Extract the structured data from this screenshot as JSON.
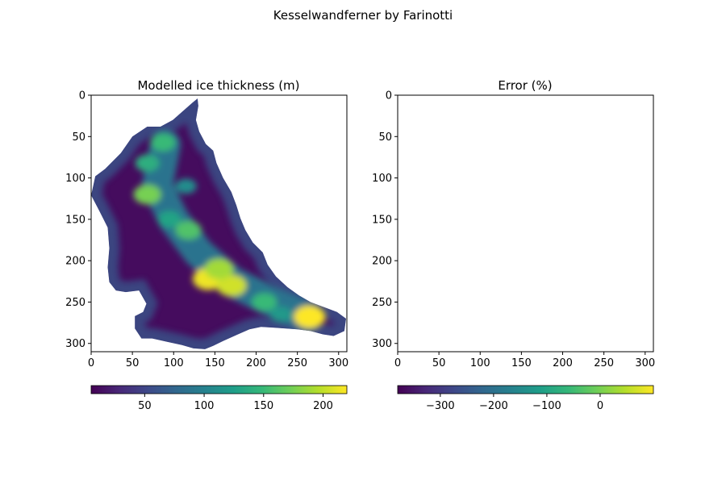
{
  "figure": {
    "suptitle": "Kesselwandferner by Farinotti"
  },
  "colormap": {
    "name": "viridis",
    "stops": [
      "#440154",
      "#482878",
      "#3e4989",
      "#31688e",
      "#26828e",
      "#1f9e89",
      "#35b779",
      "#6ece58",
      "#b5de2b",
      "#fde725"
    ]
  },
  "chart_data": [
    {
      "type": "heatmap",
      "title": "Modelled ice thickness (m)",
      "xlim": [
        0,
        310
      ],
      "ylim": [
        310,
        0
      ],
      "y_inverted": true,
      "x_ticks": [
        0,
        50,
        100,
        150,
        200,
        250,
        300
      ],
      "y_ticks": [
        0,
        50,
        100,
        150,
        200,
        250,
        300
      ],
      "colorbar": {
        "orientation": "horizontal",
        "range": [
          5,
          220
        ],
        "ticks": [
          50,
          100,
          150,
          200
        ]
      },
      "mask_outline": [
        [
          124,
          8
        ],
        [
          129,
          4
        ],
        [
          130,
          13
        ],
        [
          127,
          30
        ],
        [
          131,
          44
        ],
        [
          139,
          59
        ],
        [
          148,
          67
        ],
        [
          152,
          82
        ],
        [
          160,
          100
        ],
        [
          170,
          117
        ],
        [
          176,
          133
        ],
        [
          181,
          149
        ],
        [
          187,
          163
        ],
        [
          196,
          178
        ],
        [
          208,
          190
        ],
        [
          214,
          205
        ],
        [
          224,
          219
        ],
        [
          238,
          232
        ],
        [
          252,
          242
        ],
        [
          266,
          250
        ],
        [
          282,
          256
        ],
        [
          298,
          262
        ],
        [
          309,
          270
        ],
        [
          307,
          285
        ],
        [
          294,
          291
        ],
        [
          281,
          289
        ],
        [
          266,
          285
        ],
        [
          250,
          283
        ],
        [
          236,
          282
        ],
        [
          222,
          281
        ],
        [
          206,
          280
        ],
        [
          192,
          283
        ],
        [
          178,
          289
        ],
        [
          160,
          297
        ],
        [
          148,
          303
        ],
        [
          138,
          307
        ],
        [
          124,
          306
        ],
        [
          110,
          302
        ],
        [
          92,
          298
        ],
        [
          74,
          294
        ],
        [
          61,
          294
        ],
        [
          53,
          282
        ],
        [
          53,
          267
        ],
        [
          63,
          262
        ],
        [
          67,
          252
        ],
        [
          58,
          236
        ],
        [
          42,
          238
        ],
        [
          30,
          236
        ],
        [
          22,
          226
        ],
        [
          20,
          208
        ],
        [
          22,
          185
        ],
        [
          20,
          160
        ],
        [
          10,
          140
        ],
        [
          0,
          121
        ],
        [
          5,
          98
        ],
        [
          17,
          89
        ],
        [
          36,
          70
        ],
        [
          50,
          50
        ],
        [
          68,
          38
        ],
        [
          84,
          38
        ],
        [
          99,
          30
        ]
      ],
      "hotspots": [
        {
          "x": 142,
          "y": 222,
          "value": 215
        },
        {
          "x": 170,
          "y": 230,
          "value": 205
        },
        {
          "x": 155,
          "y": 210,
          "value": 190
        },
        {
          "x": 265,
          "y": 268,
          "value": 220
        },
        {
          "x": 68,
          "y": 120,
          "value": 175
        },
        {
          "x": 87,
          "y": 57,
          "value": 150
        },
        {
          "x": 68,
          "y": 82,
          "value": 140
        },
        {
          "x": 118,
          "y": 163,
          "value": 160
        },
        {
          "x": 95,
          "y": 150,
          "value": 130
        },
        {
          "x": 210,
          "y": 250,
          "value": 150
        },
        {
          "x": 115,
          "y": 110,
          "value": 110
        },
        {
          "x": 230,
          "y": 265,
          "value": 120
        }
      ]
    },
    {
      "type": "heatmap",
      "title": "Error (%)",
      "xlim": [
        0,
        310
      ],
      "ylim": [
        310,
        0
      ],
      "y_inverted": true,
      "x_ticks": [
        0,
        50,
        100,
        150,
        200,
        250,
        300
      ],
      "y_ticks": [
        0,
        50,
        100,
        150,
        200,
        250,
        300
      ],
      "values": [],
      "colorbar": {
        "orientation": "horizontal",
        "range": [
          -380,
          100
        ],
        "ticks": [
          -300,
          -200,
          -100,
          0
        ]
      }
    }
  ]
}
